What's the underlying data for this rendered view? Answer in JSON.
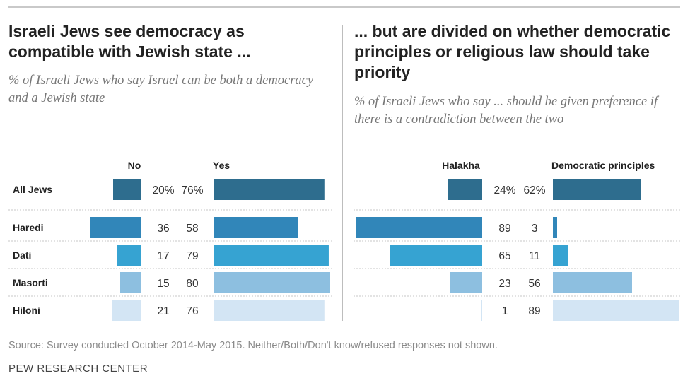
{
  "left_panel": {
    "title": "Israeli Jews see democracy as compatible with Jewish state ...",
    "subtitle": "% of Israeli Jews who say Israel can be both a democracy and a Jewish state"
  },
  "right_panel": {
    "title": "... but are divided on whether democratic principles or religious law should take priority",
    "subtitle": "% of Israeli Jews who say ... should be given preference if there is a contradiction between the two"
  },
  "footer": {
    "source": "Source: Survey conducted October 2014-May 2015. Neither/Both/Don't know/refused responses not shown.",
    "brand": "PEW RESEARCH CENTER"
  },
  "colors": {
    "all_jews": "#2e6d8e",
    "haredi": "#3186b9",
    "dati": "#36a3d2",
    "masorti": "#8dbfe0",
    "hiloni": "#d3e5f4",
    "divider": "#bdbdbd",
    "row_rule": "#c7c7c7"
  },
  "chart_data": [
    {
      "type": "bar",
      "orientation": "horizontal-diverging",
      "categories": [
        "All Jews",
        "Haredi",
        "Dati",
        "Masorti",
        "Hiloni"
      ],
      "series": [
        {
          "name": "No",
          "values": [
            20,
            36,
            17,
            15,
            21
          ],
          "labels": [
            "20%",
            "36",
            "17",
            "15",
            "21"
          ]
        },
        {
          "name": "Yes",
          "values": [
            76,
            58,
            79,
            80,
            76
          ],
          "labels": [
            "76%",
            "58",
            "79",
            "80",
            "76"
          ]
        }
      ]
    },
    {
      "type": "bar",
      "orientation": "horizontal-diverging",
      "categories": [
        "All Jews",
        "Haredi",
        "Dati",
        "Masorti",
        "Hiloni"
      ],
      "series": [
        {
          "name": "Halakha",
          "values": [
            24,
            89,
            65,
            23,
            1
          ],
          "labels": [
            "24%",
            "89",
            "65",
            "23",
            "1"
          ]
        },
        {
          "name": "Democratic principles",
          "values": [
            62,
            3,
            11,
            56,
            89
          ],
          "labels": [
            "62%",
            "3",
            "11",
            "56",
            "89"
          ]
        }
      ]
    }
  ]
}
